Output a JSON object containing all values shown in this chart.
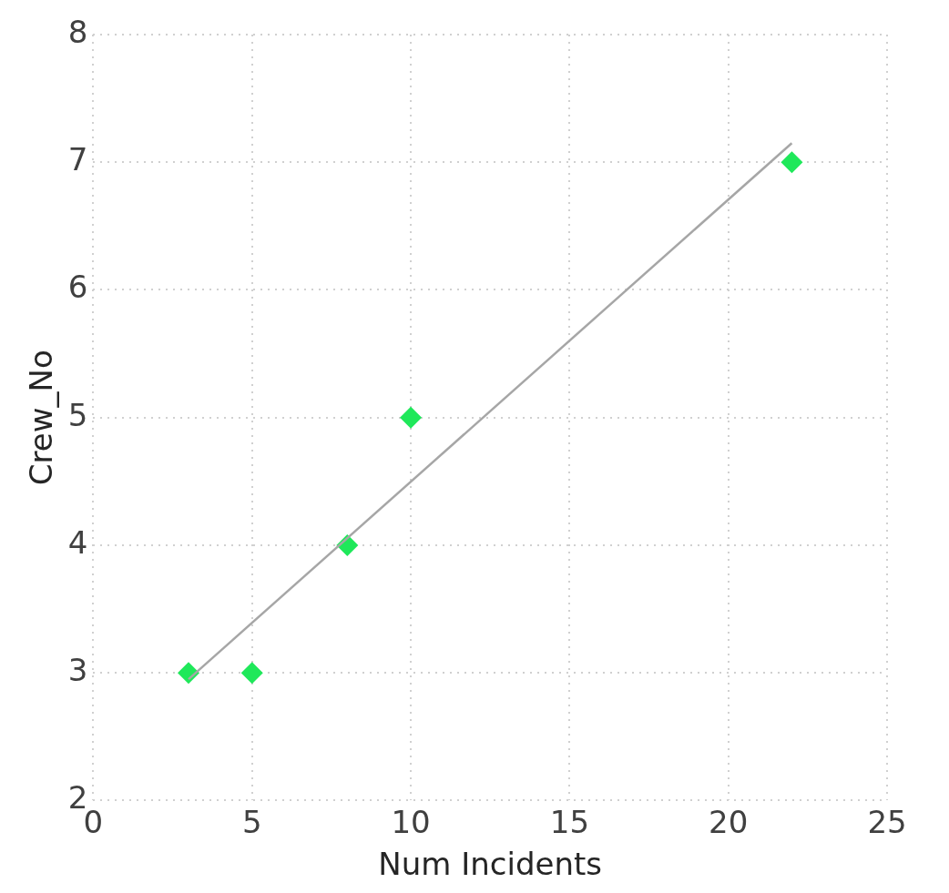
{
  "chart_data": {
    "type": "scatter",
    "xlabel": "Num Incidents",
    "ylabel": "Crew_No",
    "xlim": [
      0,
      25
    ],
    "xticks": [
      0,
      5,
      10,
      15,
      20,
      25
    ],
    "ylim": [
      2,
      8
    ],
    "yticks": [
      2,
      3,
      4,
      5,
      6,
      7,
      8
    ],
    "grid": true,
    "series": [
      {
        "type": "scatter",
        "marker": "diamond",
        "color": "#1fe85a",
        "x": [
          3,
          5,
          8,
          10,
          22
        ],
        "values": [
          3,
          3,
          4,
          5,
          7
        ]
      },
      {
        "type": "line",
        "marker": "none",
        "color": "#a6a6a6",
        "x": [
          3,
          22
        ],
        "values": [
          2.95,
          7.15
        ]
      }
    ]
  }
}
